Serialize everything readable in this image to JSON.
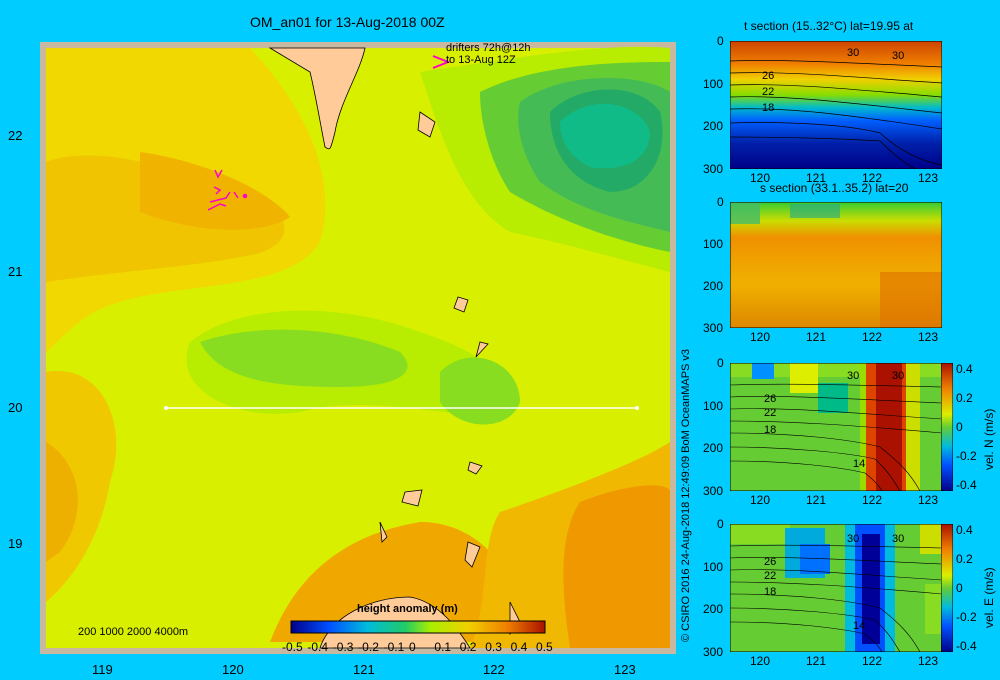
{
  "main_title": "OM_an01 for 13-Aug-2018 00Z",
  "drifters_line1": "drifters 72h@12h",
  "drifters_line2": "to 13-Aug 12Z",
  "depth_legend": "200  1000  2000  4000m",
  "copyright": "© CSIRO 2016   24-Aug-2018 12:49:09 BoM OceanMAPS v3",
  "colors": {
    "background": "#00ccff",
    "land": "#ffcc99",
    "shelf": "#c8b8a0",
    "transect": "#ffffff",
    "drifters": "#ff00cc"
  },
  "chart_data": [
    {
      "type": "heatmap",
      "title": "OM_an01 for 13-Aug-2018 00Z",
      "variable": "height anomaly (m)",
      "x_ticks": [
        "119",
        "120",
        "121",
        "122",
        "123"
      ],
      "y_ticks": [
        "22",
        "21",
        "20",
        "19"
      ],
      "xlim": [
        118.5,
        123.5
      ],
      "ylim": [
        18.2,
        22.7
      ],
      "transect": {
        "lat": 20,
        "lon_start": 119.5,
        "lon_end": 123.2
      },
      "colorbar": {
        "label": "height anomaly (m)",
        "ticks": [
          "-0.5",
          "-0.4",
          "-0.3",
          "-0.2",
          "-0.1",
          "0",
          "0.1",
          "0.2",
          "0.3",
          "0.4",
          "0.5"
        ],
        "range": [
          -0.5,
          0.5
        ]
      },
      "field_features": [
        {
          "feature": "high anomaly eddy center",
          "lon": 122.6,
          "lat": 22.0,
          "value": -0.05
        },
        {
          "feature": "low band",
          "lon": 120.8,
          "lat": 20.3,
          "value": 0.1
        },
        {
          "feature": "warm southeast",
          "lon": 123.2,
          "lat": 18.8,
          "value": 0.3
        },
        {
          "feature": "warm south",
          "lon": 121.3,
          "lat": 18.5,
          "value": 0.25
        }
      ]
    },
    {
      "type": "heatmap",
      "title": "t section (15..32°C) lat=19.95 at",
      "x_ticks": [
        "120",
        "121",
        "122",
        "123"
      ],
      "y_ticks": [
        "0",
        "100",
        "200",
        "300"
      ],
      "contour_labels": [
        "30",
        "30",
        "26",
        "22",
        "18"
      ]
    },
    {
      "type": "heatmap",
      "title": "s section (33.1..35.2) lat=20",
      "x_ticks": [
        "120",
        "121",
        "122",
        "123"
      ],
      "y_ticks": [
        "0",
        "100",
        "200",
        "300"
      ]
    },
    {
      "type": "heatmap",
      "title": "vel. N (m/s)",
      "x_ticks": [
        "120",
        "121",
        "122",
        "123"
      ],
      "y_ticks": [
        "0",
        "100",
        "200",
        "300"
      ],
      "contour_labels": [
        "30",
        "30",
        "26",
        "22",
        "18",
        "14"
      ],
      "colorbar": {
        "label": "vel. N (m/s)",
        "ticks": [
          "0.4",
          "0.2",
          "0",
          "-0.2",
          "-0.4"
        ],
        "range": [
          -0.4,
          0.4
        ]
      }
    },
    {
      "type": "heatmap",
      "title": "vel. E (m/s)",
      "x_ticks": [
        "120",
        "121",
        "122",
        "123"
      ],
      "y_ticks": [
        "0",
        "100",
        "200",
        "300"
      ],
      "contour_labels": [
        "30",
        "30",
        "26",
        "22",
        "18",
        "14"
      ],
      "colorbar": {
        "label": "vel. E (m/s)",
        "ticks": [
          "0.4",
          "0.2",
          "0",
          "-0.2",
          "-0.4"
        ],
        "range": [
          -0.4,
          0.4
        ]
      }
    }
  ]
}
